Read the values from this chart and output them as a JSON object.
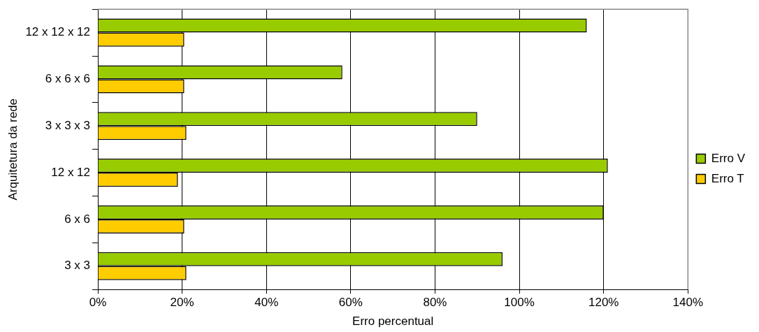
{
  "chart_data": {
    "type": "bar",
    "orientation": "horizontal",
    "xlabel": "Erro percentual",
    "ylabel": "Arquitetura da rede",
    "categories": [
      "12 x 12 x 12",
      "6 x 6 x 6",
      "3 x 3 x 3",
      "12 x 12",
      "6 x 6",
      "3 x 3"
    ],
    "series": [
      {
        "name": "Erro V",
        "color": "#99cc00",
        "values": [
          116,
          58,
          90,
          121,
          120,
          96
        ]
      },
      {
        "name": "Erro T",
        "color": "#ffcc00",
        "values": [
          20.5,
          20.5,
          21,
          19,
          20.5,
          21
        ]
      }
    ],
    "xlim": [
      0,
      140
    ],
    "xticks": [
      {
        "value": 0,
        "label": "0%"
      },
      {
        "value": 20,
        "label": "20%"
      },
      {
        "value": 40,
        "label": "40%"
      },
      {
        "value": 60,
        "label": "60%"
      },
      {
        "value": 80,
        "label": "80%"
      },
      {
        "value": 100,
        "label": "100%"
      },
      {
        "value": 120,
        "label": "120%"
      },
      {
        "value": 140,
        "label": "140%"
      }
    ],
    "grid": "x",
    "legend": "right"
  }
}
